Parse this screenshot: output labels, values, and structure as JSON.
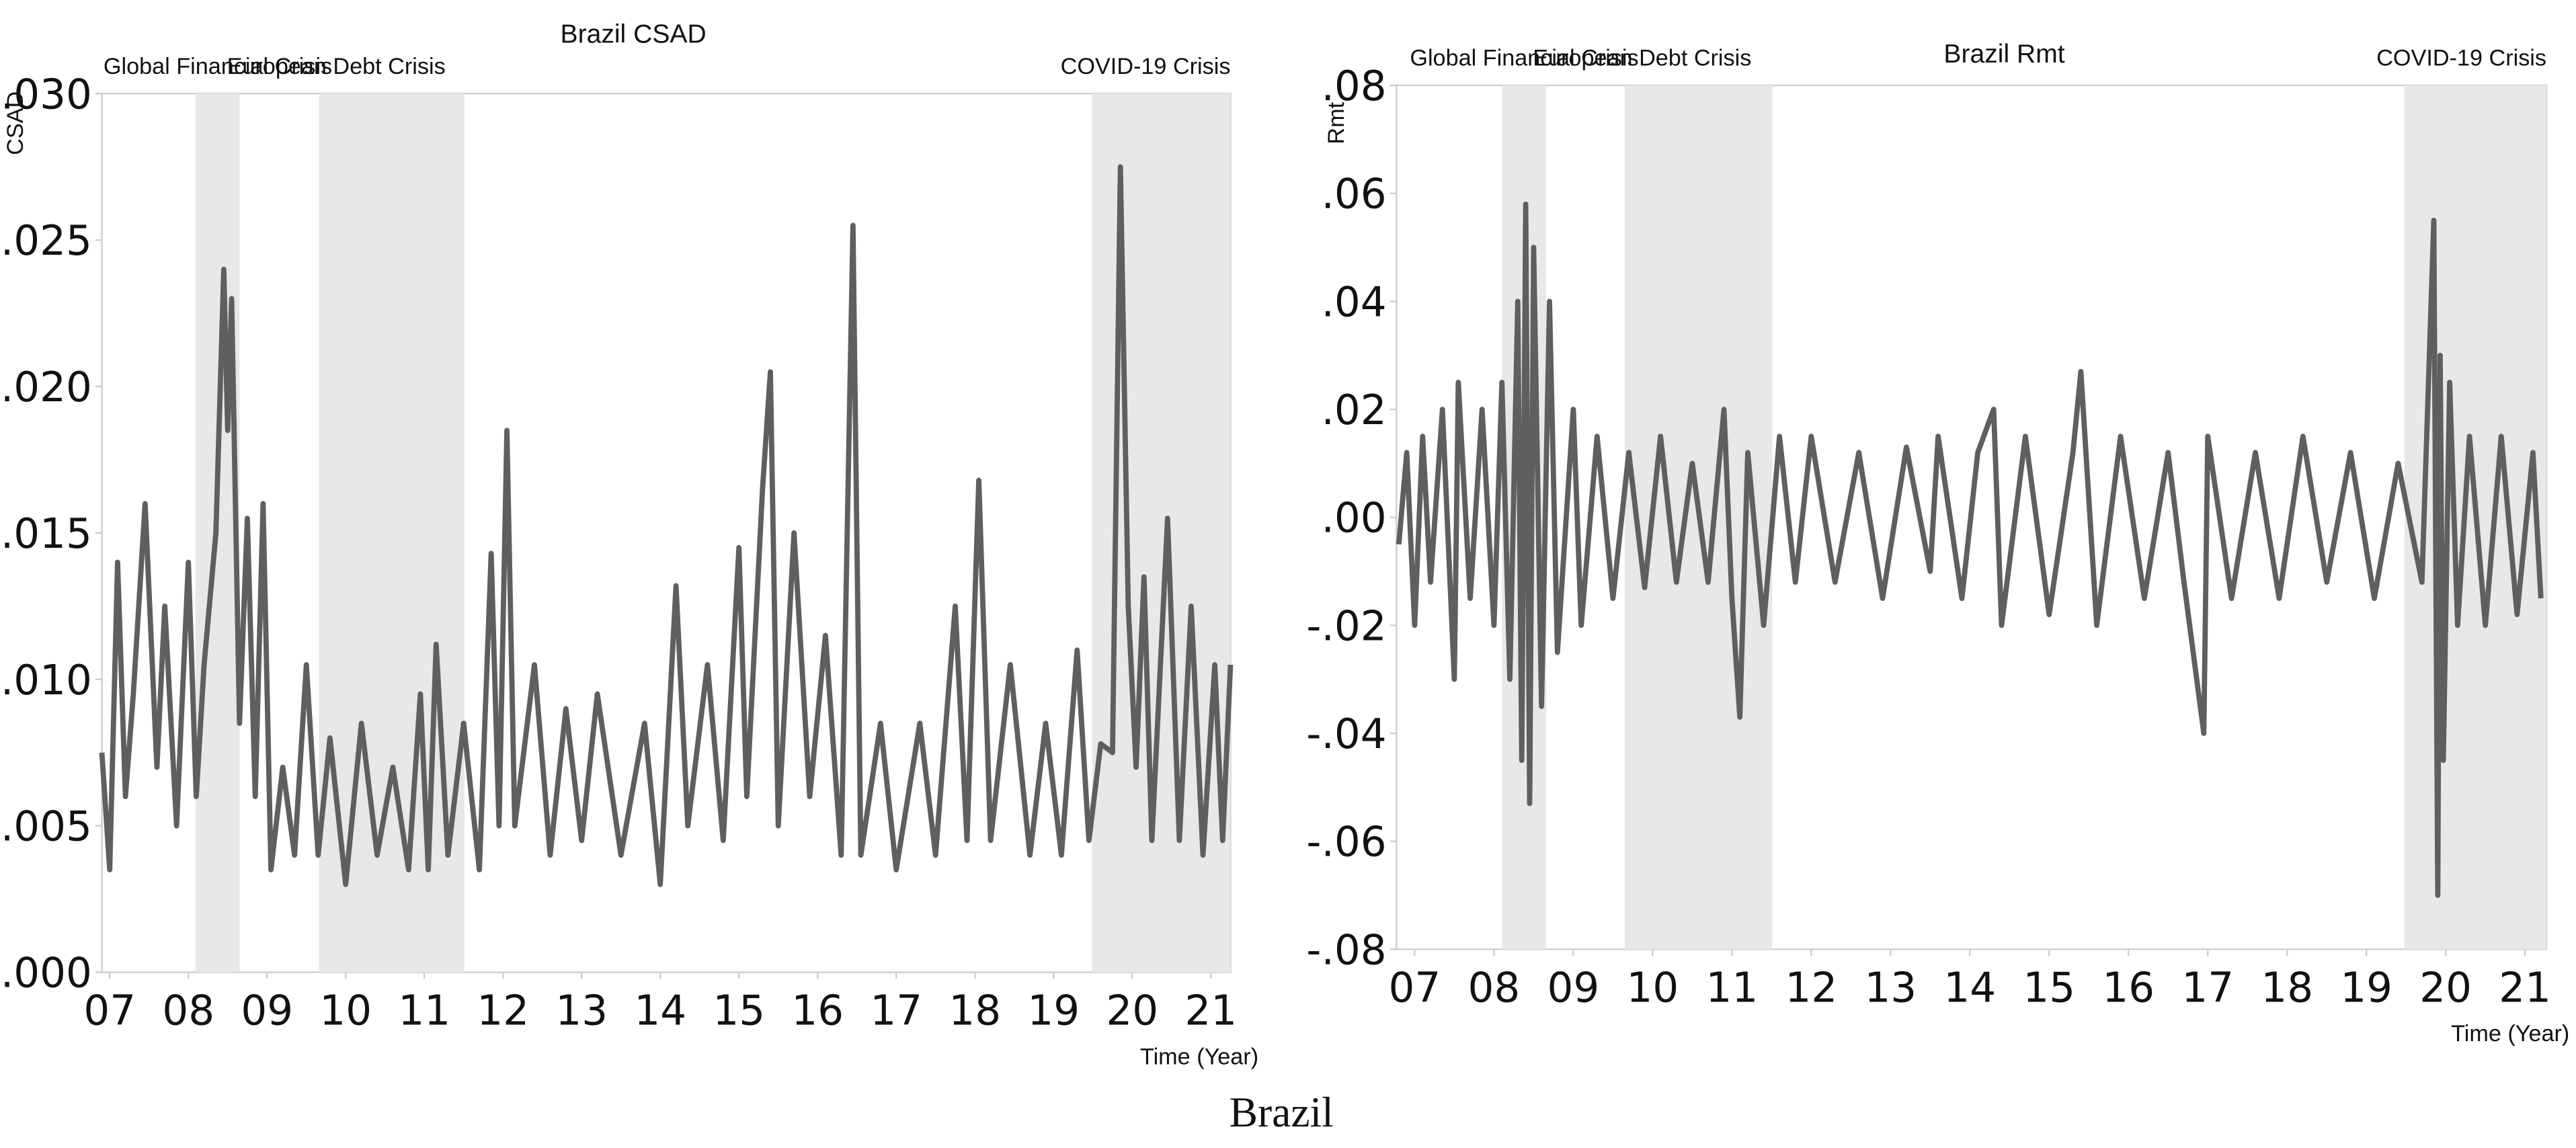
{
  "caption": "Brazil",
  "chart_data": [
    {
      "type": "line",
      "title": "Brazil CSAD",
      "y_label": "CSAD",
      "x_label": "Time (Year)",
      "color": "#5f5f5f",
      "shade_color": "#e8e8e8",
      "xlim": [
        6.9,
        21.25
      ],
      "ylim": [
        0,
        0.03
      ],
      "xticks": [
        {
          "value": 7,
          "label": "07"
        },
        {
          "value": 8,
          "label": "08"
        },
        {
          "value": 9,
          "label": "09"
        },
        10,
        11,
        12,
        13,
        14,
        15,
        16,
        17,
        18,
        19,
        20,
        21
      ],
      "yticks": [
        {
          "value": 0,
          "label": ".000"
        },
        {
          "value": 0.005,
          "label": ".005"
        },
        {
          "value": 0.01,
          "label": ".010"
        },
        {
          "value": 0.015,
          "label": ".015"
        },
        {
          "value": 0.02,
          "label": ".020"
        },
        {
          "value": 0.025,
          "label": ".025"
        },
        {
          "value": 0.03,
          "label": ".030"
        }
      ],
      "shaded_periods": [
        {
          "label": "Global Financial Crisis",
          "start": 8.09,
          "end": 8.65
        },
        {
          "label": "European Debt Crisis",
          "start": 9.66,
          "end": 11.51
        },
        {
          "label": "COVID-19 Crisis",
          "start": 19.49,
          "end": 21.25
        }
      ],
      "x": [
        6.9,
        7.0,
        7.1,
        7.2,
        7.3,
        7.45,
        7.6,
        7.7,
        7.85,
        8.0,
        8.1,
        8.2,
        8.35,
        8.45,
        8.5,
        8.55,
        8.65,
        8.75,
        8.85,
        8.95,
        9.05,
        9.2,
        9.35,
        9.5,
        9.65,
        9.8,
        10.0,
        10.2,
        10.4,
        10.6,
        10.8,
        10.95,
        11.05,
        11.15,
        11.3,
        11.5,
        11.7,
        11.85,
        11.95,
        12.05,
        12.15,
        12.4,
        12.6,
        12.8,
        13.0,
        13.2,
        13.5,
        13.8,
        14.0,
        14.2,
        14.35,
        14.6,
        14.8,
        15.0,
        15.1,
        15.3,
        15.4,
        15.5,
        15.7,
        15.9,
        16.1,
        16.3,
        16.45,
        16.55,
        16.8,
        17.0,
        17.3,
        17.5,
        17.75,
        17.9,
        18.05,
        18.2,
        18.45,
        18.7,
        18.9,
        19.1,
        19.3,
        19.45,
        19.6,
        19.75,
        19.85,
        19.95,
        20.05,
        20.15,
        20.25,
        20.45,
        20.6,
        20.75,
        20.9,
        21.05,
        21.15,
        21.25
      ],
      "values": [
        0.0075,
        0.0035,
        0.014,
        0.006,
        0.0095,
        0.016,
        0.007,
        0.0125,
        0.005,
        0.014,
        0.006,
        0.0105,
        0.015,
        0.024,
        0.0185,
        0.023,
        0.0085,
        0.0155,
        0.006,
        0.016,
        0.0035,
        0.007,
        0.004,
        0.0105,
        0.004,
        0.008,
        0.003,
        0.0085,
        0.004,
        0.007,
        0.0035,
        0.0095,
        0.0035,
        0.0112,
        0.004,
        0.0085,
        0.0035,
        0.0143,
        0.005,
        0.0185,
        0.005,
        0.0105,
        0.004,
        0.009,
        0.0045,
        0.0095,
        0.004,
        0.0085,
        0.003,
        0.0132,
        0.005,
        0.0105,
        0.0045,
        0.0145,
        0.006,
        0.0165,
        0.0205,
        0.005,
        0.015,
        0.006,
        0.0115,
        0.004,
        0.0255,
        0.004,
        0.0085,
        0.0035,
        0.0085,
        0.004,
        0.0125,
        0.0045,
        0.0168,
        0.0045,
        0.0105,
        0.004,
        0.0085,
        0.004,
        0.011,
        0.0045,
        0.0078,
        0.0075,
        0.0275,
        0.0125,
        0.007,
        0.0135,
        0.0045,
        0.0155,
        0.0045,
        0.0125,
        0.004,
        0.0105,
        0.0045,
        0.0105
      ]
    },
    {
      "type": "line",
      "title": "Brazil Rmt",
      "y_label": "Rmt",
      "x_label": "Time (Year)",
      "color": "#5f5f5f",
      "shade_color": "#e8e8e8",
      "xlim": [
        6.77,
        21.27
      ],
      "ylim": [
        -0.08,
        0.08
      ],
      "xticks": [
        {
          "value": 7,
          "label": "07"
        },
        {
          "value": 8,
          "label": "08"
        },
        {
          "value": 9,
          "label": "09"
        },
        10,
        11,
        12,
        13,
        14,
        15,
        16,
        17,
        18,
        19,
        20,
        21
      ],
      "yticks": [
        {
          "value": -0.08,
          "label": "-.08"
        },
        {
          "value": -0.06,
          "label": "-.06"
        },
        {
          "value": -0.04,
          "label": "-.04"
        },
        {
          "value": -0.02,
          "label": "-.02"
        },
        {
          "value": 0,
          "label": ".00"
        },
        {
          "value": 0.02,
          "label": ".02"
        },
        {
          "value": 0.04,
          "label": ".04"
        },
        {
          "value": 0.06,
          "label": ".06"
        },
        {
          "value": 0.08,
          "label": ".08"
        }
      ],
      "shaded_periods": [
        {
          "label": "Global Financial Crisis",
          "start": 8.1,
          "end": 8.66
        },
        {
          "label": "European Debt Crisis",
          "start": 9.65,
          "end": 11.51
        },
        {
          "label": "COVID-19 Crisis",
          "start": 19.48,
          "end": 21.27
        }
      ],
      "x": [
        6.8,
        6.9,
        7.0,
        7.1,
        7.2,
        7.35,
        7.5,
        7.55,
        7.7,
        7.85,
        8.0,
        8.1,
        8.2,
        8.3,
        8.35,
        8.4,
        8.45,
        8.5,
        8.6,
        8.7,
        8.8,
        9.0,
        9.1,
        9.3,
        9.5,
        9.7,
        9.9,
        10.1,
        10.3,
        10.5,
        10.7,
        10.9,
        11.0,
        11.1,
        11.2,
        11.4,
        11.6,
        11.8,
        12.0,
        12.3,
        12.6,
        12.9,
        13.2,
        13.5,
        13.6,
        13.9,
        14.1,
        14.3,
        14.4,
        14.7,
        15.0,
        15.3,
        15.4,
        15.6,
        15.9,
        16.2,
        16.5,
        16.7,
        16.95,
        17.0,
        17.3,
        17.6,
        17.9,
        18.2,
        18.5,
        18.8,
        19.1,
        19.4,
        19.7,
        19.85,
        19.9,
        19.93,
        19.97,
        20.05,
        20.15,
        20.3,
        20.5,
        20.7,
        20.9,
        21.1,
        21.2
      ],
      "values": [
        -0.005,
        0.012,
        -0.02,
        0.015,
        -0.012,
        0.02,
        -0.03,
        0.025,
        -0.015,
        0.02,
        -0.02,
        0.025,
        -0.03,
        0.04,
        -0.045,
        0.058,
        -0.053,
        0.05,
        -0.035,
        0.04,
        -0.025,
        0.02,
        -0.02,
        0.015,
        -0.015,
        0.012,
        -0.013,
        0.015,
        -0.012,
        0.01,
        -0.012,
        0.02,
        -0.015,
        -0.037,
        0.012,
        -0.02,
        0.015,
        -0.012,
        0.015,
        -0.012,
        0.012,
        -0.015,
        0.013,
        -0.01,
        0.015,
        -0.015,
        0.012,
        0.02,
        -0.02,
        0.015,
        -0.018,
        0.012,
        0.027,
        -0.02,
        0.015,
        -0.015,
        0.012,
        -0.012,
        -0.04,
        0.015,
        -0.015,
        0.012,
        -0.015,
        0.015,
        -0.012,
        0.012,
        -0.015,
        0.01,
        -0.012,
        0.055,
        -0.07,
        0.03,
        -0.045,
        0.025,
        -0.02,
        0.015,
        -0.02,
        0.015,
        -0.018,
        0.012,
        -0.015
      ]
    }
  ]
}
